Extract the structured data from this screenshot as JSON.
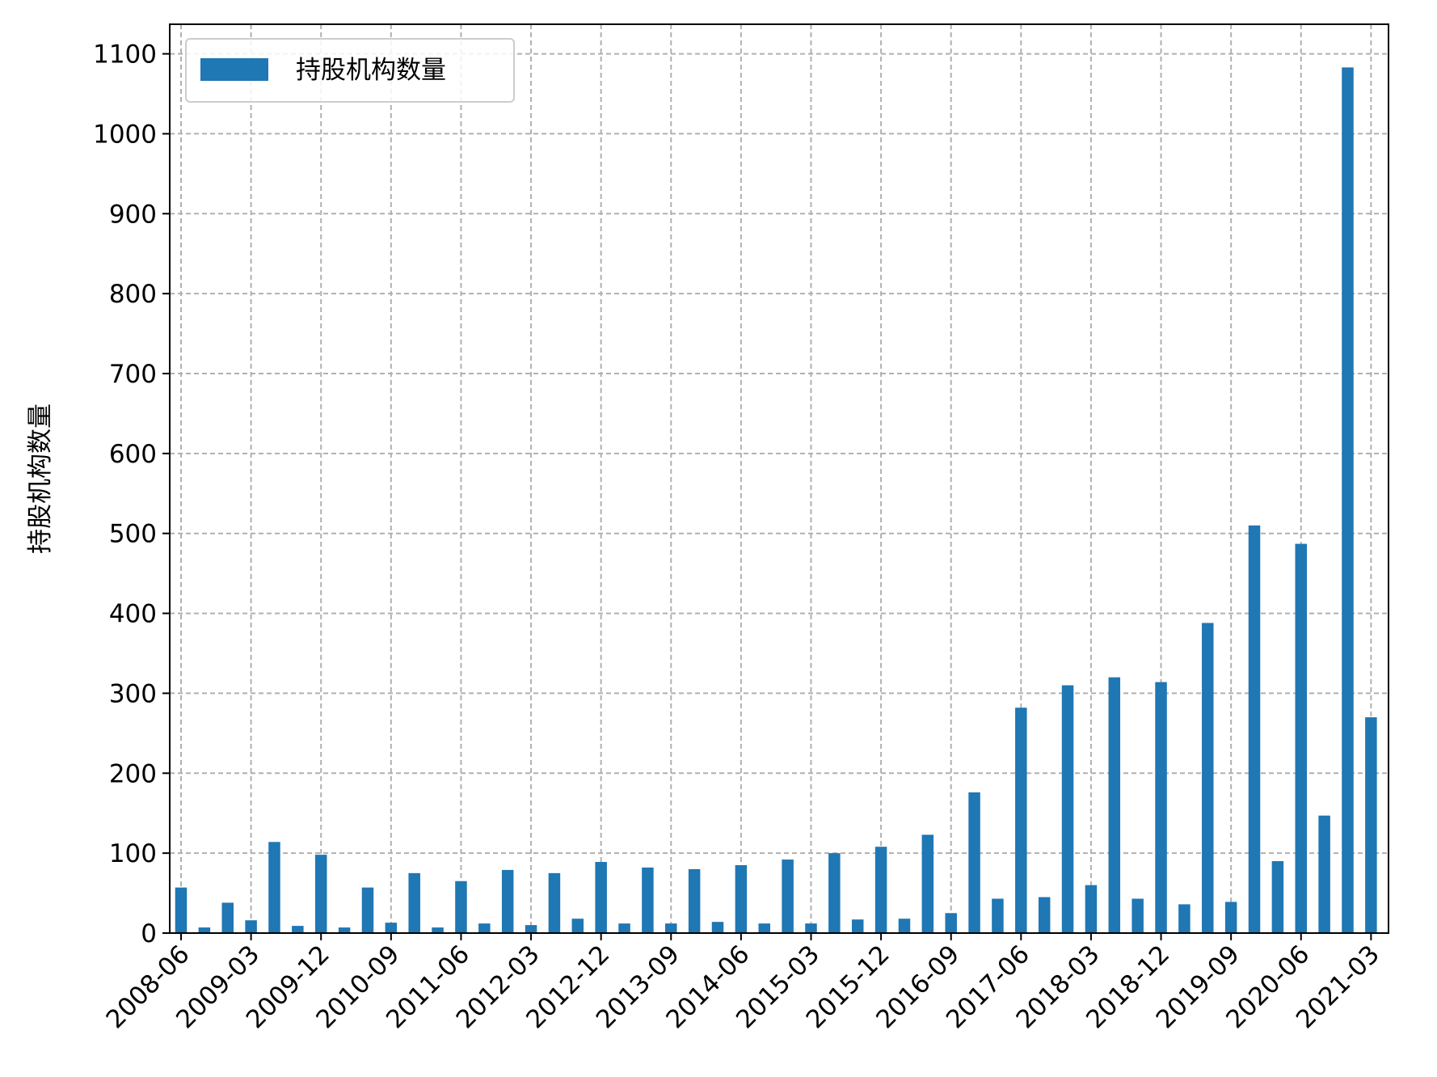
{
  "chart_data": {
    "type": "bar",
    "ylabel": "持股机构数量",
    "xlabel": "",
    "title": "",
    "ylim": [
      0,
      1137
    ],
    "yticks": [
      0,
      100,
      200,
      300,
      400,
      500,
      600,
      700,
      800,
      900,
      1000,
      1100
    ],
    "grid": true,
    "legend_position": "top-left",
    "bar_color": "#1f77b4",
    "categories": [
      "2008-06",
      "2008-09",
      "2008-12",
      "2009-03",
      "2009-06",
      "2009-09",
      "2009-12",
      "2010-03",
      "2010-06",
      "2010-09",
      "2010-12",
      "2011-03",
      "2011-06",
      "2011-09",
      "2011-12",
      "2012-03",
      "2012-06",
      "2012-09",
      "2012-12",
      "2013-03",
      "2013-06",
      "2013-09",
      "2013-12",
      "2014-03",
      "2014-06",
      "2014-09",
      "2014-12",
      "2015-03",
      "2015-06",
      "2015-09",
      "2015-12",
      "2016-03",
      "2016-06",
      "2016-09",
      "2016-12",
      "2017-03",
      "2017-06",
      "2017-09",
      "2017-12",
      "2018-03",
      "2018-06",
      "2018-09",
      "2018-12",
      "2019-03",
      "2019-06",
      "2019-09",
      "2019-12",
      "2020-03",
      "2020-06",
      "2020-09",
      "2020-12",
      "2021-03"
    ],
    "tick_labels": [
      "2008-06",
      "2009-03",
      "2009-12",
      "2010-09",
      "2011-06",
      "2012-03",
      "2012-12",
      "2013-09",
      "2014-06",
      "2015-03",
      "2015-12",
      "2016-09",
      "2017-06",
      "2018-03",
      "2018-12",
      "2019-09",
      "2020-06",
      "2021-03"
    ],
    "series": [
      {
        "name": "持股机构数量",
        "values": [
          57,
          7,
          38,
          16,
          114,
          9,
          98,
          7,
          57,
          13,
          75,
          7,
          65,
          12,
          79,
          10,
          75,
          18,
          89,
          12,
          82,
          12,
          80,
          14,
          85,
          12,
          92,
          12,
          100,
          17,
          108,
          18,
          123,
          25,
          176,
          43,
          282,
          45,
          310,
          60,
          320,
          43,
          314,
          36,
          388,
          39,
          510,
          90,
          487,
          147,
          1083,
          270
        ]
      }
    ]
  }
}
